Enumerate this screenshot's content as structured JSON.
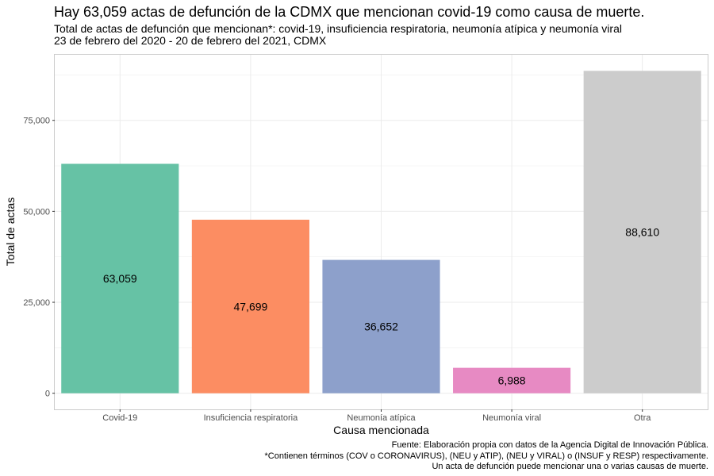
{
  "title": "Hay 63,059 actas de defunción de la CDMX que mencionan covid-19 como causa de muerte.",
  "subtitle": [
    "Total de actas de defunción que mencionan*: covid-19, insuficiencia respiratoria, neumonía atípica y neumonía viral",
    "23 de febrero del 2020 - 20 de febrero del 2021, CDMX"
  ],
  "caption": [
    "Fuente: Elaboración propia con datos de la Agencia Digital de Innovación Pública.",
    "*Contienen términos (COV o CORONAVIRUS), (NEU y ATIP), (NEU y VIRAL) o (INSUF y RESP) respectivamente.",
    "Un acta de defunción puede mencionar una o varias causas de muerte."
  ],
  "chart_data": {
    "type": "bar",
    "xlabel": "Causa mencionada",
    "ylabel": "Total de actas",
    "categories": [
      "Covid-19",
      "Insuficiencia respiratoria",
      "Neumonía atípica",
      "Neumonía viral",
      "Otra"
    ],
    "values": [
      63059,
      47699,
      36652,
      6988,
      88610
    ],
    "data_labels": [
      "63,059",
      "47,699",
      "36,652",
      "6,988",
      "88,610"
    ],
    "colors": [
      "#66c2a5",
      "#fc8d62",
      "#8da0cb",
      "#e78ac3",
      "#cccccc"
    ],
    "ylim": [
      -4430,
      93040
    ],
    "yticks": [
      0,
      25000,
      50000,
      75000
    ],
    "ytick_labels": [
      "0",
      "25,000",
      "50,000",
      "75,000"
    ],
    "grid": true,
    "legend": "none"
  }
}
